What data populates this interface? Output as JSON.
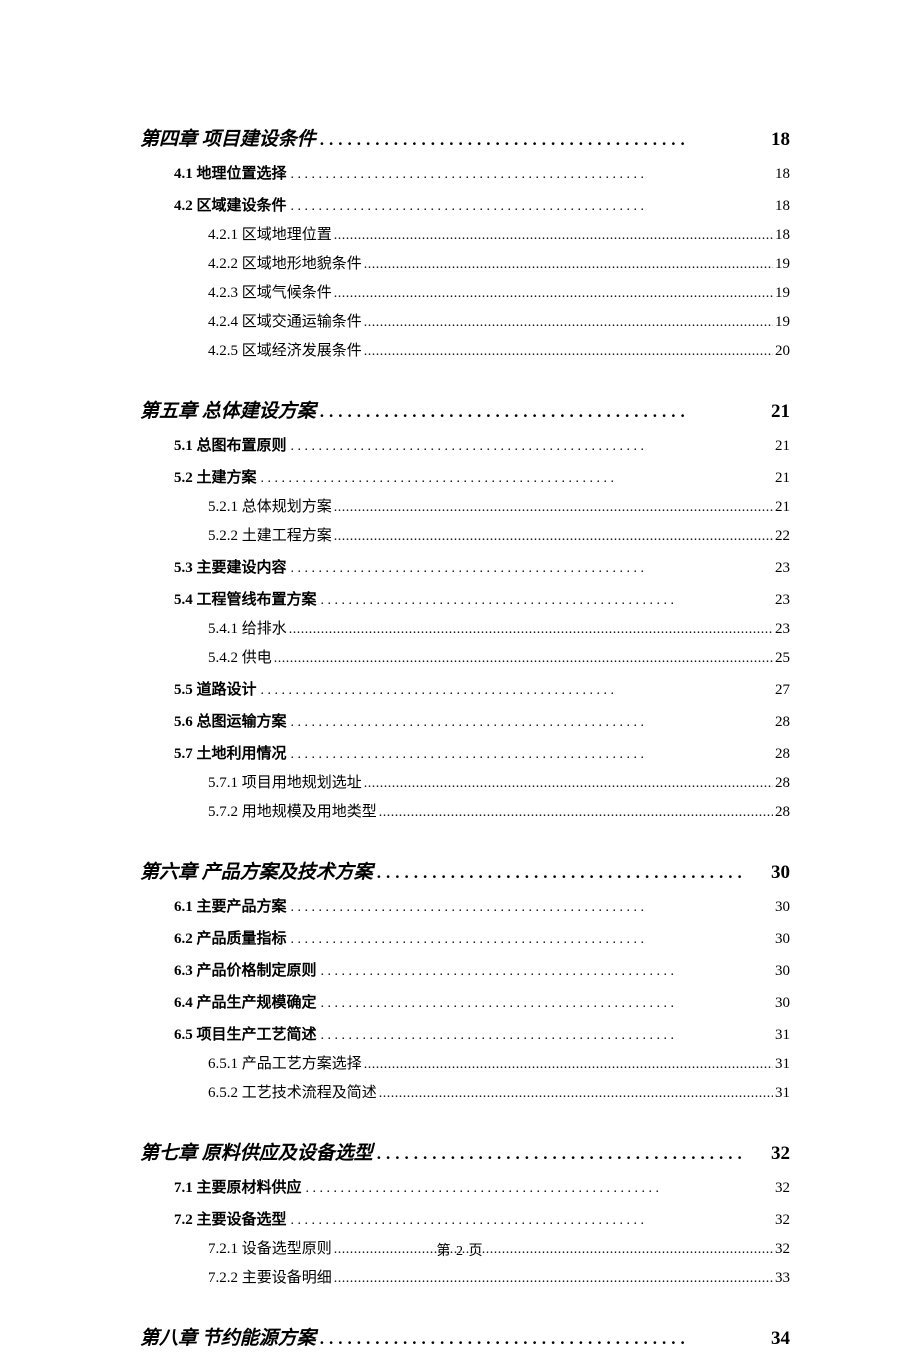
{
  "page_footer": "第 2 页",
  "leaders": {
    "chapter": "........................................",
    "section": "...................................................",
    "subsection": "................................................................................................................................"
  },
  "toc": [
    {
      "type": "chapter",
      "title": "第四章 项目建设条件",
      "page": "18",
      "children": [
        {
          "type": "section",
          "title": "4.1 地理位置选择",
          "page": "18"
        },
        {
          "type": "section",
          "title": "4.2 区域建设条件",
          "page": "18",
          "children": [
            {
              "type": "subsection",
              "title": "4.2.1 区域地理位置",
              "page": "18"
            },
            {
              "type": "subsection",
              "title": "4.2.2 区域地形地貌条件",
              "page": "19"
            },
            {
              "type": "subsection",
              "title": "4.2.3 区域气候条件",
              "page": "19"
            },
            {
              "type": "subsection",
              "title": "4.2.4 区域交通运输条件",
              "page": "19"
            },
            {
              "type": "subsection",
              "title": "4.2.5 区域经济发展条件",
              "page": "20"
            }
          ]
        }
      ]
    },
    {
      "type": "chapter",
      "title": "第五章 总体建设方案",
      "page": "21",
      "children": [
        {
          "type": "section",
          "title": "5.1 总图布置原则",
          "page": "21"
        },
        {
          "type": "section",
          "title": "5.2 土建方案",
          "page": "21",
          "children": [
            {
              "type": "subsection",
              "title": "5.2.1 总体规划方案",
              "page": "21"
            },
            {
              "type": "subsection",
              "title": "5.2.2 土建工程方案",
              "page": "22"
            }
          ]
        },
        {
          "type": "section",
          "title": "5.3 主要建设内容",
          "page": "23"
        },
        {
          "type": "section",
          "title": "5.4 工程管线布置方案",
          "page": "23",
          "children": [
            {
              "type": "subsection",
              "title": "5.4.1 给排水",
              "page": "23"
            },
            {
              "type": "subsection",
              "title": "5.4.2 供电",
              "page": "25"
            }
          ]
        },
        {
          "type": "section",
          "title": "5.5 道路设计",
          "page": "27"
        },
        {
          "type": "section",
          "title": "5.6 总图运输方案",
          "page": "28"
        },
        {
          "type": "section",
          "title": "5.7 土地利用情况",
          "page": "28",
          "children": [
            {
              "type": "subsection",
              "title": "5.7.1 项目用地规划选址",
              "page": "28"
            },
            {
              "type": "subsection",
              "title": "5.7.2 用地规模及用地类型",
              "page": "28"
            }
          ]
        }
      ]
    },
    {
      "type": "chapter",
      "title": "第六章 产品方案及技术方案",
      "page": "30",
      "children": [
        {
          "type": "section",
          "title": "6.1 主要产品方案",
          "page": "30"
        },
        {
          "type": "section",
          "title": "6.2 产品质量指标",
          "page": "30"
        },
        {
          "type": "section",
          "title": "6.3 产品价格制定原则",
          "page": "30"
        },
        {
          "type": "section",
          "title": "6.4 产品生产规模确定",
          "page": "30"
        },
        {
          "type": "section",
          "title": "6.5 项目生产工艺简述",
          "page": "31",
          "children": [
            {
              "type": "subsection",
              "title": "6.5.1 产品工艺方案选择",
              "page": "31"
            },
            {
              "type": "subsection",
              "title": "6.5.2 工艺技术流程及简述",
              "page": "31"
            }
          ]
        }
      ]
    },
    {
      "type": "chapter",
      "title": "第七章 原料供应及设备选型",
      "page": "32",
      "children": [
        {
          "type": "section",
          "title": "7.1 主要原材料供应",
          "page": "32"
        },
        {
          "type": "section",
          "title": "7.2 主要设备选型",
          "page": "32",
          "children": [
            {
              "type": "subsection",
              "title": "7.2.1 设备选型原则",
              "page": "32"
            },
            {
              "type": "subsection",
              "title": "7.2.2 主要设备明细",
              "page": "33"
            }
          ]
        }
      ]
    },
    {
      "type": "chapter",
      "title": "第八章 节约能源方案",
      "page": "34",
      "children": []
    }
  ]
}
